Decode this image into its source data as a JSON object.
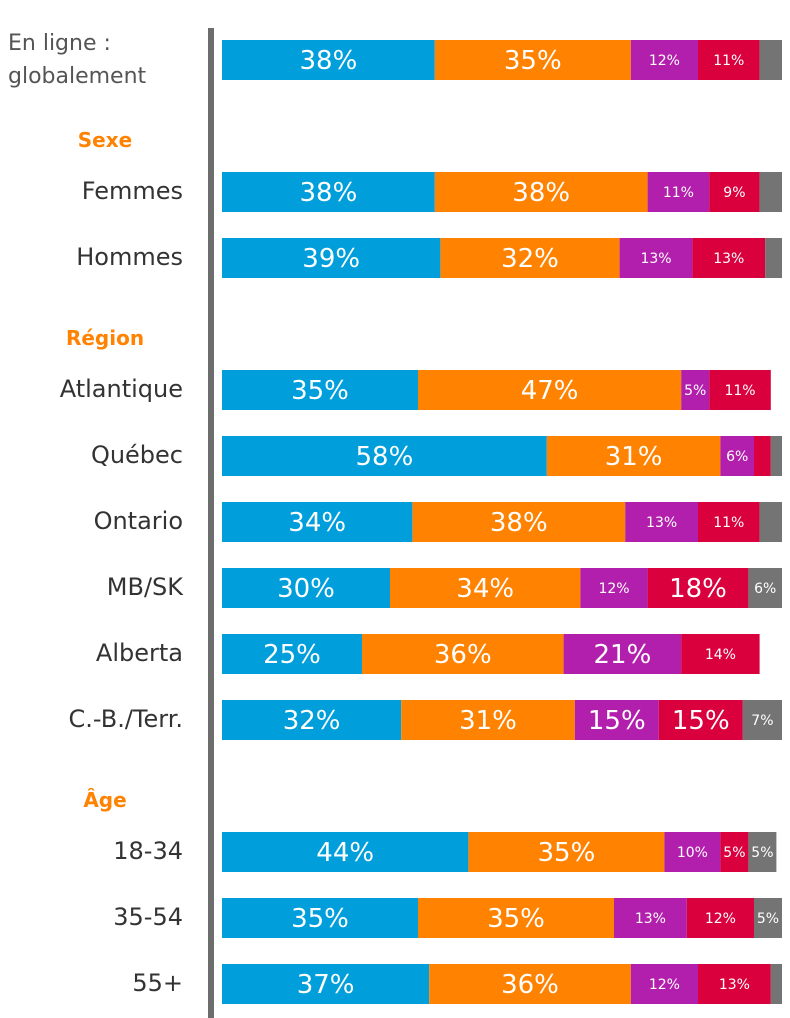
{
  "chart_data": {
    "type": "stacked-bar-horizontal",
    "group_color": "#ff8200",
    "categories": [
      "En ligne :\nglobalement",
      "Sexe",
      "Femmes",
      "Hommes",
      "Région",
      "Atlantique",
      "Québec",
      "Ontario",
      "MB/SK",
      "Alberta",
      "C.-B./Terr.",
      "Âge",
      "18-34",
      "35-54",
      "55+"
    ],
    "xlim": [
      0,
      100
    ],
    "series": [
      {
        "color": "#009fdb",
        "values": [
          38,
          null,
          38,
          39,
          null,
          35,
          58,
          34,
          30,
          25,
          32,
          null,
          44,
          35,
          37
        ],
        "value_labels": [
          "38%",
          null,
          "38%",
          "39%",
          null,
          "35%",
          "58%",
          "34%",
          "30%",
          "25%",
          "32%",
          null,
          "44%",
          "35%",
          "37%"
        ]
      },
      {
        "color": "#ff8200",
        "values": [
          35,
          null,
          38,
          32,
          null,
          47,
          31,
          38,
          34,
          36,
          31,
          null,
          35,
          35,
          36
        ],
        "value_labels": [
          "35%",
          null,
          "38%",
          "32%",
          null,
          "47%",
          "31%",
          "38%",
          "34%",
          "36%",
          "31%",
          null,
          "35%",
          "35%",
          "36%"
        ]
      },
      {
        "color": "#b31fad",
        "values": [
          12,
          null,
          11,
          13,
          null,
          5,
          6,
          13,
          12,
          21,
          15,
          null,
          10,
          13,
          12
        ],
        "value_labels": [
          "12%",
          null,
          "11%",
          "13%",
          null,
          "5%",
          "6%",
          "13%",
          "12%",
          "21%",
          "15%",
          null,
          "10%",
          "13%",
          "12%"
        ]
      },
      {
        "color": "#d9003d",
        "values": [
          11,
          null,
          9,
          13,
          null,
          11,
          3,
          11,
          18,
          14,
          15,
          null,
          5,
          12,
          13
        ],
        "value_labels": [
          "11%",
          null,
          "9%",
          "13%",
          null,
          "11%",
          null,
          "11%",
          "18%",
          "14%",
          "15%",
          null,
          "5%",
          "12%",
          "13%"
        ]
      },
      {
        "color": "#747474",
        "values": [
          4,
          null,
          4,
          3,
          null,
          null,
          2,
          4,
          6,
          null,
          7,
          null,
          5,
          5,
          2
        ],
        "value_labels": [
          null,
          null,
          null,
          null,
          null,
          null,
          null,
          null,
          "6%",
          null,
          "7%",
          null,
          "5%",
          "5%",
          null
        ]
      }
    ]
  }
}
